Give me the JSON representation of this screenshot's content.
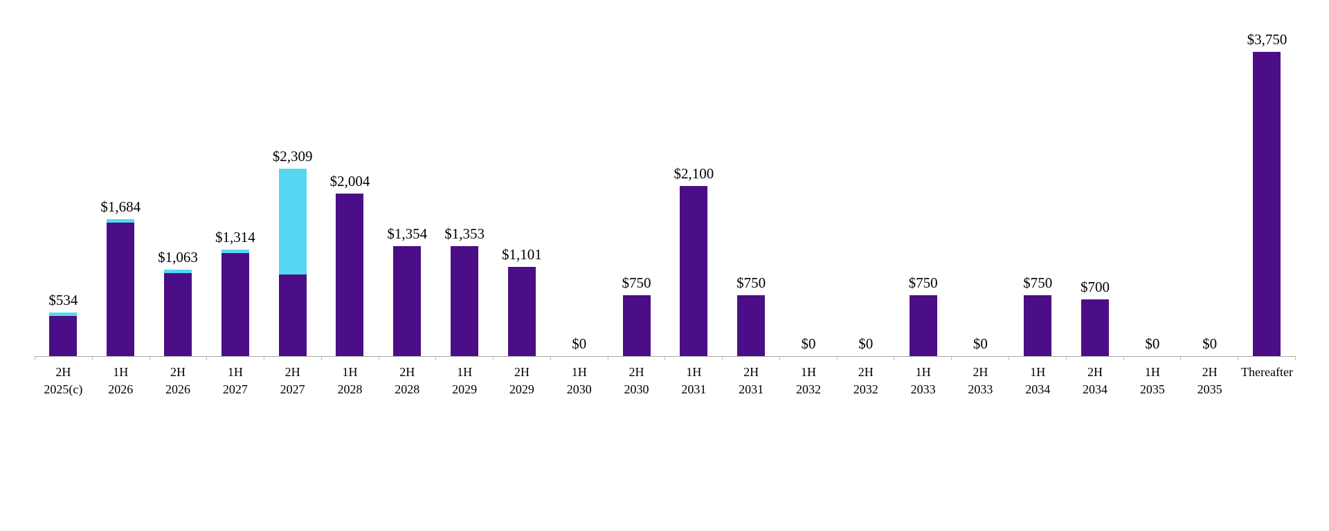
{
  "chart_data": {
    "type": "bar",
    "stacked": true,
    "title": "",
    "xlabel": "",
    "ylabel": "",
    "ylim": [
      0,
      3750
    ],
    "grid": false,
    "legend": false,
    "axis_color": "#a8a8a8",
    "categories": [
      [
        "2H",
        "2025(c)"
      ],
      [
        "1H",
        "2026"
      ],
      [
        "2H",
        "2026"
      ],
      [
        "1H",
        "2027"
      ],
      [
        "2H",
        "2027"
      ],
      [
        "1H",
        "2028"
      ],
      [
        "2H",
        "2028"
      ],
      [
        "1H",
        "2029"
      ],
      [
        "2H",
        "2029"
      ],
      [
        "1H",
        "2030"
      ],
      [
        "2H",
        "2030"
      ],
      [
        "1H",
        "2031"
      ],
      [
        "2H",
        "2031"
      ],
      [
        "1H",
        "2032"
      ],
      [
        "2H",
        "2032"
      ],
      [
        "1H",
        "2033"
      ],
      [
        "2H",
        "2033"
      ],
      [
        "1H",
        "2034"
      ],
      [
        "2H",
        "2034"
      ],
      [
        "1H",
        "2035"
      ],
      [
        "2H",
        "2035"
      ],
      [
        "Thereafter"
      ]
    ],
    "totals": [
      534,
      1684,
      1063,
      1314,
      2309,
      2004,
      1354,
      1353,
      1101,
      0,
      750,
      2100,
      750,
      0,
      0,
      750,
      0,
      750,
      700,
      0,
      0,
      3750
    ],
    "value_labels": [
      "$534",
      "$1,684",
      "$1,063",
      "$1,314",
      "$2,309",
      "$2,004",
      "$1,354",
      "$1,353",
      "$1,101",
      "$0",
      "$750",
      "$2,100",
      "$750",
      "$0",
      "$0",
      "$750",
      "$0",
      "$750",
      "$700",
      "$0",
      "$0",
      "$3,750"
    ],
    "series": [
      {
        "name": "purple-series",
        "color": "#4B0E86",
        "values": [
          494,
          1649,
          1023,
          1274,
          1009,
          2004,
          1354,
          1353,
          1101,
          0,
          750,
          2100,
          750,
          0,
          0,
          750,
          0,
          750,
          700,
          0,
          0,
          3750
        ]
      },
      {
        "name": "cyan-series",
        "color": "#55D7F2",
        "values": [
          40,
          35,
          40,
          40,
          1300,
          0,
          0,
          0,
          0,
          0,
          0,
          0,
          0,
          0,
          0,
          0,
          0,
          0,
          0,
          0,
          0,
          0
        ]
      }
    ]
  }
}
